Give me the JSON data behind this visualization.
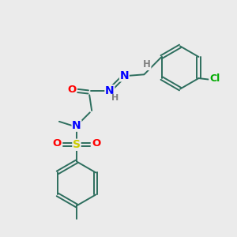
{
  "bg_color": "#ebebeb",
  "bond_color": "#2d6e5e",
  "atom_colors": {
    "N": "#0000ff",
    "O": "#ff0000",
    "S": "#cccc00",
    "Cl": "#00aa00",
    "H_label": "#808080",
    "C": "#2d6e5e"
  },
  "figsize": [
    3.0,
    3.0
  ],
  "dpi": 100
}
